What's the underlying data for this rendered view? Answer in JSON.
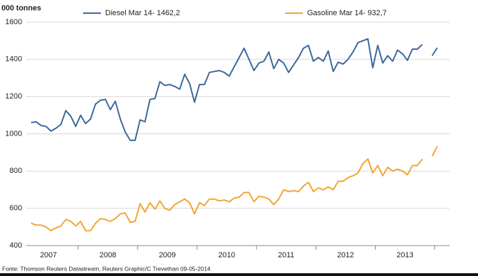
{
  "chart_data": {
    "type": "line",
    "ylabel": "000 tonnes",
    "source": "Fonte: Thomson Reuters Datastream, Reuters Graphic/C Trevethan 09-05-2014",
    "categories": [
      null,
      null,
      null,
      "2007",
      null,
      null,
      null,
      null,
      null,
      null,
      null,
      null,
      null,
      null,
      null,
      "2008",
      null,
      null,
      null,
      null,
      null,
      null,
      null,
      null,
      null,
      null,
      null,
      "2009",
      null,
      null,
      null,
      null,
      null,
      null,
      null,
      null,
      null,
      null,
      null,
      "2010",
      null,
      null,
      null,
      null,
      null,
      null,
      null,
      null,
      null,
      null,
      null,
      "2011",
      null,
      null,
      null,
      null,
      null,
      null,
      null,
      null,
      null,
      null,
      null,
      "2012",
      null,
      null,
      null,
      null,
      null,
      null,
      null,
      null,
      null,
      null,
      null,
      "2013",
      null,
      null,
      null,
      null,
      null,
      null,
      null
    ],
    "series": [
      {
        "name": "Diesel  Mar 14- 1462,2",
        "color": "#3a679a",
        "values": [
          1060,
          1065,
          1045,
          1040,
          1015,
          1030,
          1050,
          1125,
          1095,
          1040,
          1100,
          1055,
          1080,
          1160,
          1180,
          1185,
          1130,
          1175,
          1080,
          1010,
          965,
          965,
          1075,
          1065,
          1185,
          1190,
          1280,
          1260,
          1265,
          1255,
          1240,
          1320,
          1270,
          1170,
          1265,
          1265,
          1330,
          1335,
          1340,
          1330,
          1310,
          1360,
          1410,
          1460,
          1400,
          1340,
          1380,
          1390,
          1440,
          1350,
          1400,
          1380,
          1330,
          1370,
          1410,
          1460,
          1475,
          1390,
          1410,
          1390,
          1445,
          1335,
          1385,
          1375,
          1400,
          1440,
          1490,
          1500,
          1510,
          1355,
          1475,
          1380,
          1420,
          1390,
          1450,
          1430,
          1395,
          1455,
          1455,
          1480,
          null,
          1420,
          1462.2
        ]
      },
      {
        "name": "Gasoline  Mar 14- 932,7",
        "color": "#f3a431",
        "values": [
          520,
          510,
          510,
          500,
          480,
          495,
          505,
          540,
          530,
          505,
          530,
          480,
          480,
          520,
          545,
          540,
          530,
          545,
          570,
          575,
          525,
          530,
          625,
          580,
          630,
          595,
          640,
          600,
          590,
          620,
          635,
          650,
          630,
          570,
          630,
          615,
          650,
          650,
          640,
          645,
          635,
          655,
          660,
          685,
          685,
          635,
          665,
          660,
          650,
          620,
          650,
          700,
          690,
          695,
          690,
          720,
          740,
          690,
          710,
          700,
          715,
          700,
          745,
          745,
          765,
          775,
          790,
          840,
          865,
          790,
          830,
          775,
          820,
          800,
          810,
          800,
          780,
          830,
          830,
          865,
          null,
          880,
          932.7
        ]
      }
    ],
    "ylim": [
      400,
      1600
    ],
    "yticks": [
      400,
      600,
      800,
      1000,
      1200,
      1400,
      1600
    ],
    "grid": true
  }
}
